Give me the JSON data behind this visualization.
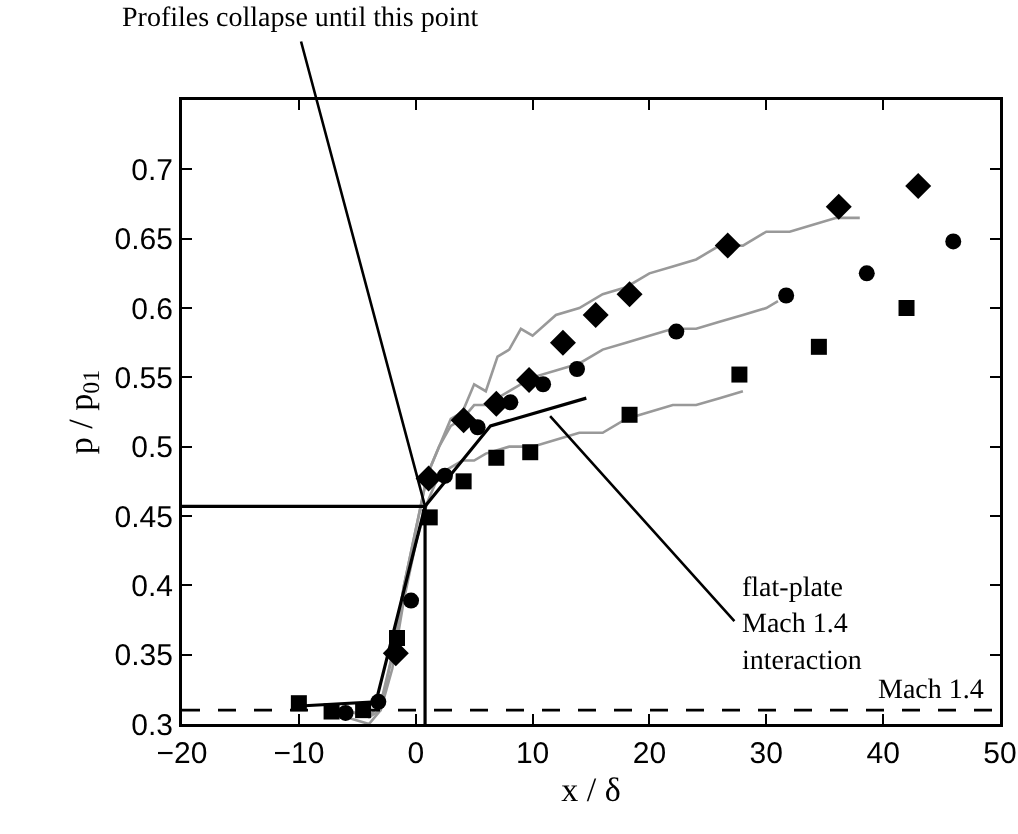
{
  "chart_data": {
    "type": "scatter",
    "xlabel": "x / δ",
    "ylabel": "p / p$_{01}$",
    "xlim": [
      -20,
      50
    ],
    "xticks": [
      -20,
      -10,
      0,
      10,
      20,
      30,
      40,
      50
    ],
    "ylim": [
      0.3,
      0.75
    ],
    "yticks": [
      0.3,
      0.35,
      0.4,
      0.45,
      0.5,
      0.55,
      0.6,
      0.65,
      0.7
    ],
    "grid": false,
    "legend": false,
    "series": [
      {
        "type": "line",
        "color": "#999999",
        "x": [
          -6,
          -4,
          -3,
          -2,
          -1,
          0,
          0.5,
          1,
          2,
          3,
          4,
          5,
          6,
          7,
          8,
          9,
          10,
          12,
          14,
          16,
          18,
          20,
          22,
          24,
          26,
          28,
          30,
          32,
          34,
          36,
          38
        ],
        "values": [
          0.305,
          0.3,
          0.31,
          0.35,
          0.4,
          0.44,
          0.46,
          0.48,
          0.5,
          0.52,
          0.525,
          0.545,
          0.54,
          0.565,
          0.57,
          0.585,
          0.58,
          0.595,
          0.6,
          0.61,
          0.615,
          0.625,
          0.63,
          0.635,
          0.645,
          0.645,
          0.655,
          0.655,
          0.66,
          0.665,
          0.665
        ]
      },
      {
        "type": "line",
        "color": "#999999",
        "x": [
          -6,
          -4,
          -3,
          -2,
          -1,
          0,
          1,
          2,
          3,
          4,
          5,
          6,
          8,
          10,
          12,
          14,
          16,
          18,
          20,
          22,
          24,
          26,
          28,
          30,
          31
        ],
        "values": [
          0.31,
          0.305,
          0.315,
          0.35,
          0.4,
          0.44,
          0.48,
          0.5,
          0.515,
          0.52,
          0.53,
          0.53,
          0.54,
          0.55,
          0.555,
          0.56,
          0.57,
          0.575,
          0.58,
          0.585,
          0.585,
          0.59,
          0.595,
          0.6,
          0.605
        ]
      },
      {
        "type": "line",
        "color": "#999999",
        "x": [
          -6,
          -4,
          -3,
          -2,
          -1,
          0,
          1,
          2,
          3,
          4,
          5,
          6,
          8,
          10,
          12,
          14,
          16,
          18,
          20,
          22,
          24,
          26,
          28
        ],
        "values": [
          0.31,
          0.305,
          0.31,
          0.34,
          0.39,
          0.43,
          0.46,
          0.48,
          0.485,
          0.49,
          0.49,
          0.495,
          0.5,
          0.5,
          0.505,
          0.51,
          0.51,
          0.52,
          0.525,
          0.53,
          0.53,
          0.535,
          0.54
        ]
      },
      {
        "type": "line",
        "color": "#000000",
        "x": [
          -9.9,
          -3.4,
          0.8,
          6.4,
          14.6
        ],
        "values": [
          0.313,
          0.316,
          0.457,
          0.515,
          0.535
        ]
      },
      {
        "type": "line",
        "color": "#000000",
        "x": [
          -20,
          0.8,
          0.8
        ],
        "values": [
          0.457,
          0.457,
          0.3
        ]
      },
      {
        "marker": "diamond",
        "color": "#000000",
        "x": [
          -1.7,
          1.1,
          4.1,
          6.9,
          9.7,
          12.6,
          15.4,
          18.3,
          26.7,
          36.2,
          43.0
        ],
        "values": [
          0.351,
          0.477,
          0.519,
          0.531,
          0.548,
          0.575,
          0.595,
          0.61,
          0.645,
          0.673,
          0.688
        ]
      },
      {
        "marker": "circle",
        "color": "#000000",
        "x": [
          -6.0,
          -3.2,
          -0.4,
          2.5,
          5.3,
          8.1,
          10.9,
          13.8,
          22.3,
          31.7,
          38.6,
          46.0
        ],
        "values": [
          0.308,
          0.316,
          0.389,
          0.479,
          0.514,
          0.532,
          0.545,
          0.556,
          0.583,
          0.609,
          0.625,
          0.648
        ]
      },
      {
        "marker": "square",
        "color": "#000000",
        "x": [
          -10.0,
          -7.2,
          -4.5,
          -1.6,
          1.2,
          4.1,
          6.9,
          9.8,
          18.3,
          27.7,
          34.5,
          42.0
        ],
        "values": [
          0.315,
          0.309,
          0.31,
          0.362,
          0.449,
          0.475,
          0.492,
          0.496,
          0.523,
          0.552,
          0.572,
          0.6
        ]
      }
    ],
    "ref_lines": [
      {
        "axis": "y",
        "value": 0.31,
        "label": "Mach 1.4",
        "line_style": "dashed",
        "color": "#000000"
      }
    ],
    "annotations": [
      {
        "text": "Profiles collapse until this point",
        "x": 0.8,
        "y": 0.457
      },
      {
        "text": "flat-plate\nMach 1.4\ninteraction",
        "x": 11.5,
        "y": 0.522
      }
    ]
  }
}
